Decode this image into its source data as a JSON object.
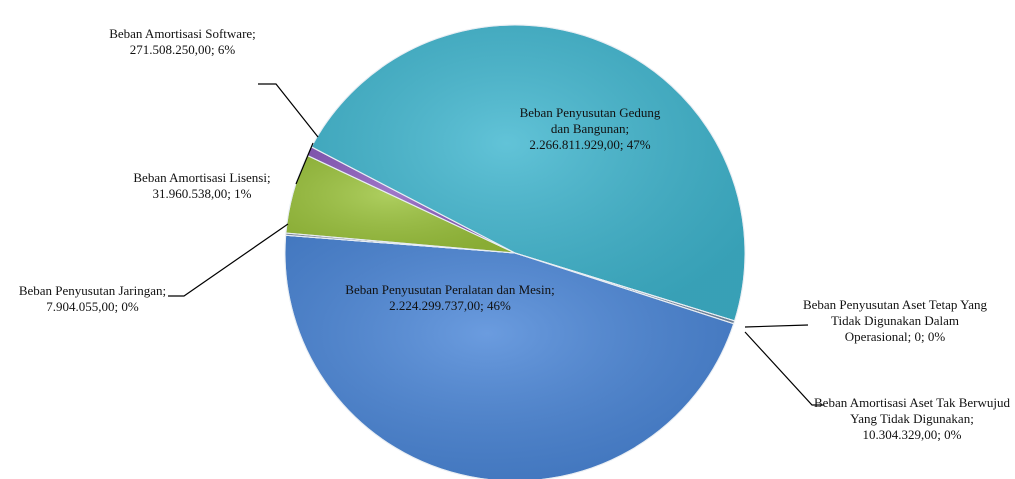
{
  "chart_data": {
    "type": "pie",
    "separator": "; ",
    "categories": [
      "Beban Amortisasi Aset Tak Berwujud Yang Tidak Digunakan",
      "Beban Penyusutan Peralatan dan Mesin",
      "Beban Penyusutan Jaringan",
      "Beban Amortisasi Software",
      "Beban Amortisasi Lisensi",
      "Beban Penyusutan Gedung dan Bangunan",
      "Beban Penyusutan Aset Tetap Yang Tidak Digunakan Dalam Operasional"
    ],
    "values": [
      10304329,
      2224299737,
      7904055,
      271508250,
      31960538,
      2266811929,
      0
    ],
    "value_labels": [
      "10.304.329,00",
      "2.224.299.737,00",
      "7.904.055,00",
      "271.508.250,00",
      "31.960.538,00",
      "2.266.811.929,00",
      "0"
    ],
    "percent_labels": [
      "0%",
      "46%",
      "0%",
      "6%",
      "1%",
      "47%",
      "0%"
    ],
    "colors": [
      "#7a8fa8",
      "#4a86d8",
      "#8f9aa6",
      "#9cc43c",
      "#8d5cc0",
      "#3fb6cf",
      "#a0a0a0"
    ]
  }
}
